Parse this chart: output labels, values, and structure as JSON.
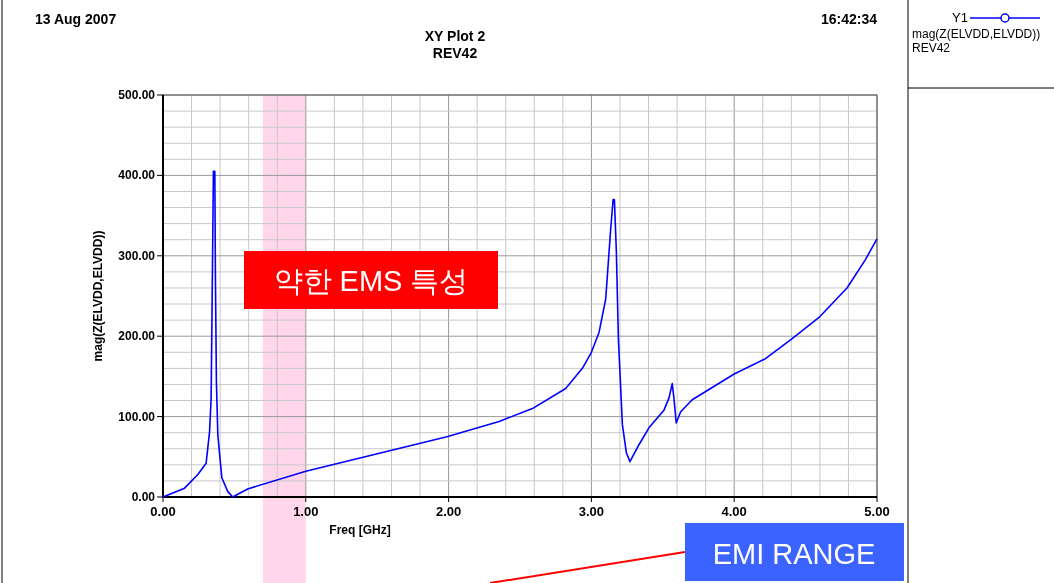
{
  "chart_data": {
    "type": "line",
    "title": "XY Plot 2",
    "subtitle": "REV42",
    "xlabel": "Freq [GHz]",
    "ylabel": "mag(Z(ELVDD,ELVDD))",
    "legend_title": "Y1",
    "legend": "right",
    "annotations": [
      "13 Aug 2007",
      "16:42:34",
      "약한 EMS 특성",
      "EMI RANGE"
    ],
    "xlim": [
      0,
      5
    ],
    "ylim": [
      0,
      500
    ],
    "xticks": [
      {
        "value": 0,
        "label": "0.00"
      },
      {
        "value": 1,
        "label": "1.00"
      },
      {
        "value": 2,
        "label": "2.00"
      },
      {
        "value": 3,
        "label": "3.00"
      },
      {
        "value": 4,
        "label": "4.00"
      },
      {
        "value": 5,
        "label": "5.00"
      }
    ],
    "yticks": [
      {
        "value": 0,
        "label": "0.00"
      },
      {
        "value": 100,
        "label": "100.00"
      },
      {
        "value": 200,
        "label": "200.00"
      },
      {
        "value": 300,
        "label": "300.00"
      },
      {
        "value": 400,
        "label": "400.00"
      },
      {
        "value": 500,
        "label": "500.00"
      }
    ],
    "grid": true,
    "bands": [
      {
        "axis": "x",
        "from": 0.7,
        "to": 1.0,
        "color": "#ffd6ea"
      }
    ],
    "series": [
      {
        "name": "mag(Z(ELVDD,ELVDD)) REV42",
        "color": "#0000ff",
        "x": [
          0,
          0.151,
          0.244,
          0.302,
          0.326,
          0.337,
          0.344,
          0.353,
          0.363,
          0.367,
          0.374,
          0.384,
          0.412,
          0.453,
          0.488,
          0.593,
          1.0,
          1.988,
          2.354,
          2.587,
          2.82,
          2.937,
          3.0,
          3.054,
          3.1,
          3.135,
          3.152,
          3.161,
          3.175,
          3.189,
          3.217,
          3.245,
          3.27,
          3.333,
          3.403,
          3.508,
          3.543,
          3.566,
          3.578,
          3.594,
          3.625,
          3.706,
          4.0,
          4.219,
          4.406,
          4.592,
          4.79,
          4.918,
          5.0
        ],
        "values": [
          0,
          11,
          28,
          42,
          81,
          123,
          242,
          405,
          405,
          275,
          143,
          77,
          24,
          7,
          0,
          10,
          32,
          75,
          94,
          110,
          135,
          160,
          180,
          205,
          246,
          333,
          370,
          370,
          304,
          197,
          90,
          55,
          44,
          65,
          86,
          108,
          123,
          141,
          123,
          92,
          106,
          121,
          153,
          172,
          197,
          223,
          260,
          295,
          321
        ]
      }
    ]
  }
}
